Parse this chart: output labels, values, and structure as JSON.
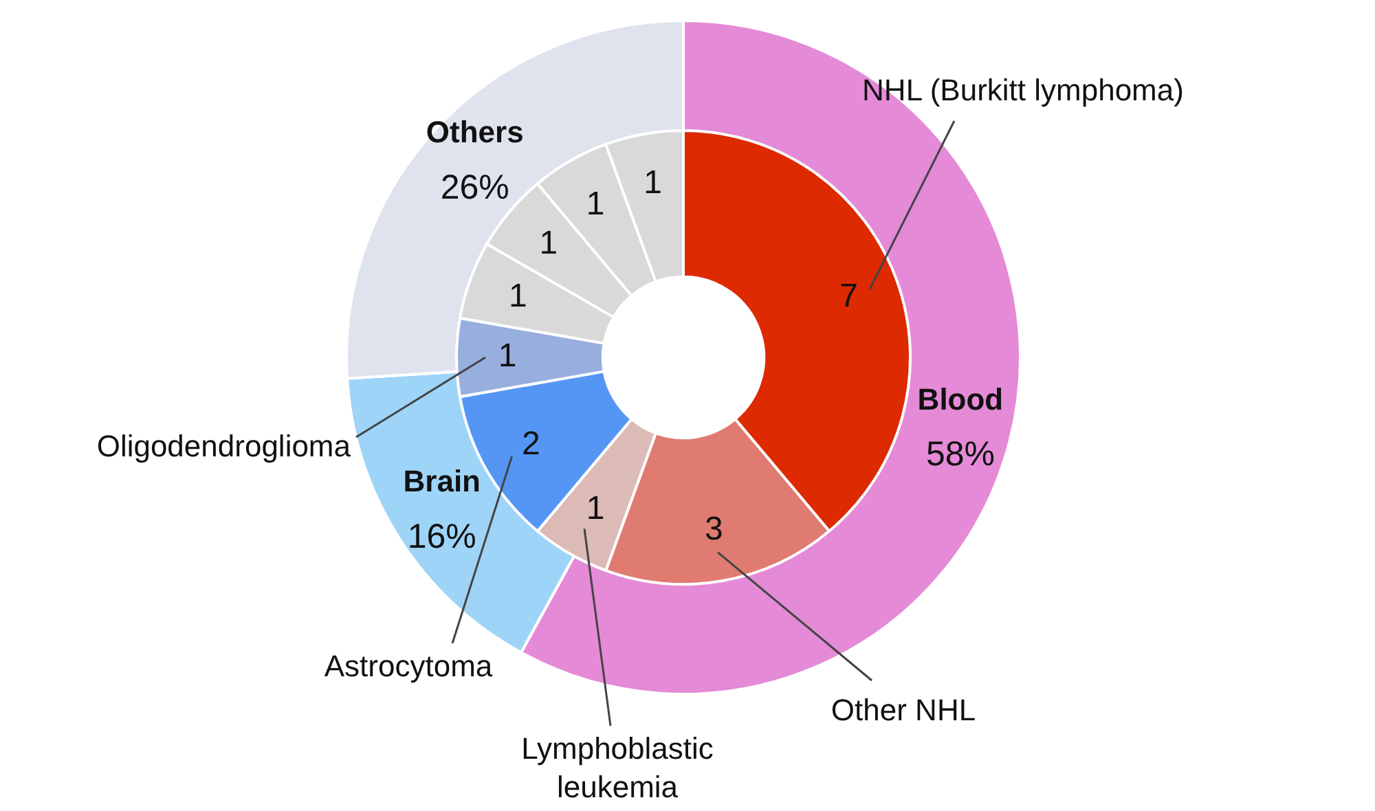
{
  "chart_data": [
    {
      "type": "donut",
      "categories": [
        "Blood",
        "Brain",
        "Others"
      ],
      "values": [
        58,
        16,
        26
      ],
      "colors": [
        "#e58ad6",
        "#9ed4f8",
        "#dfe3ee"
      ],
      "value_labels": [
        "58%",
        "16%",
        "26%"
      ]
    },
    {
      "type": "donut",
      "categories": [
        "NHL (Burkitt lymphoma)",
        "Other NHL",
        "Lymphoblastic leukemia",
        "Astrocytoma",
        "Oligodendroglioma",
        null,
        null,
        null,
        null
      ],
      "values": [
        7,
        3,
        1,
        2,
        1,
        1,
        1,
        1,
        1
      ],
      "colors": [
        "#dd2a00",
        "#e07b72",
        "#dcbab5",
        "#5596f5",
        "#98aedf",
        "#d9d9d9",
        "#d9d9d9",
        "#d9d9d9",
        "#d9d9d9"
      ],
      "data_labels": true
    }
  ]
}
